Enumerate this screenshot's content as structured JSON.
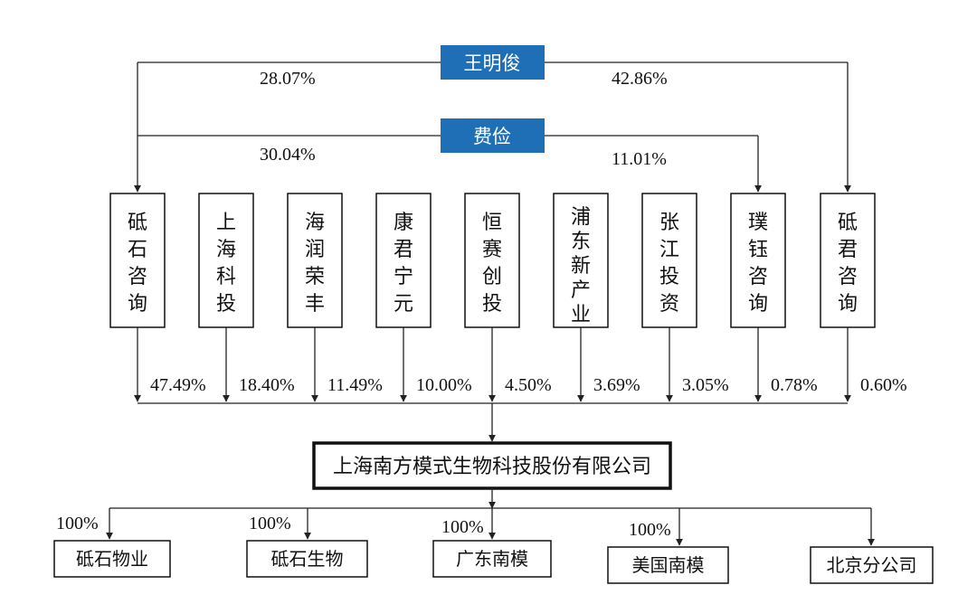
{
  "owners": [
    {
      "name": "王明俊",
      "left_pct": "28.07%",
      "right_pct": "42.86%"
    },
    {
      "name": "费俭",
      "left_pct": "30.04%",
      "right_pct": "11.01%"
    }
  ],
  "shareholders": [
    {
      "name": [
        "砥",
        "石",
        "咨",
        "询"
      ],
      "pct": "47.49%"
    },
    {
      "name": [
        "上",
        "海",
        "科",
        "投"
      ],
      "pct": "18.40%"
    },
    {
      "name": [
        "海",
        "润",
        "荣",
        "丰"
      ],
      "pct": "11.49%"
    },
    {
      "name": [
        "康",
        "君",
        "宁",
        "元"
      ],
      "pct": "10.00%"
    },
    {
      "name": [
        "恒",
        "赛",
        "创",
        "投"
      ],
      "pct": "4.50%"
    },
    {
      "name": [
        "浦",
        "东",
        "新",
        "产",
        "业"
      ],
      "pct": "3.69%"
    },
    {
      "name": [
        "张",
        "江",
        "投",
        "资"
      ],
      "pct": "3.05%"
    },
    {
      "name": [
        "璞",
        "钰",
        "咨",
        "询"
      ],
      "pct": "0.78%"
    },
    {
      "name": [
        "砥",
        "君",
        "咨",
        "询"
      ],
      "pct": "0.60%"
    }
  ],
  "company": {
    "name": "上海南方模式生物科技股份有限公司"
  },
  "subsidiaries": [
    {
      "name": "砥石物业",
      "pct": "100%"
    },
    {
      "name": "砥石生物",
      "pct": "100%"
    },
    {
      "name": "广东南模",
      "pct": "100%"
    },
    {
      "name": "美国南模",
      "pct": "100%"
    },
    {
      "name": "北京分公司",
      "pct": ""
    }
  ],
  "colors": {
    "owner_fill": "#1f6fb7",
    "line": "#222222"
  }
}
